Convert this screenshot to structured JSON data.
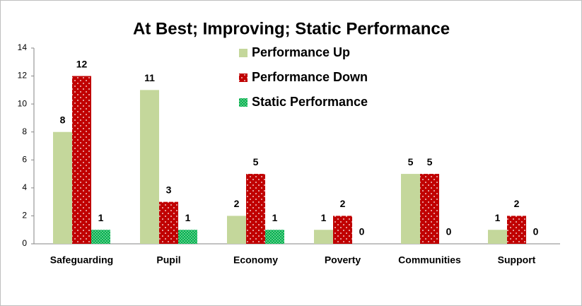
{
  "chart_data": {
    "type": "bar",
    "title": "At Best; Improving; Static Performance",
    "categories": [
      "Safeguarding",
      "Pupil",
      "Economy",
      "Poverty",
      "Communities",
      "Support"
    ],
    "series": [
      {
        "name": "Performance Up",
        "color": "#c4d79b",
        "values": [
          8,
          11,
          2,
          1,
          5,
          1
        ]
      },
      {
        "name": "Performance Down",
        "color": "#c00000",
        "values": [
          12,
          3,
          5,
          2,
          5,
          2
        ]
      },
      {
        "name": "Static Performance",
        "color": "#00b050",
        "values": [
          1,
          1,
          1,
          0,
          0,
          0
        ]
      }
    ],
    "ylim": [
      0,
      14
    ],
    "yticks": [
      0,
      2,
      4,
      6,
      8,
      10,
      12,
      14
    ],
    "grid": false
  }
}
